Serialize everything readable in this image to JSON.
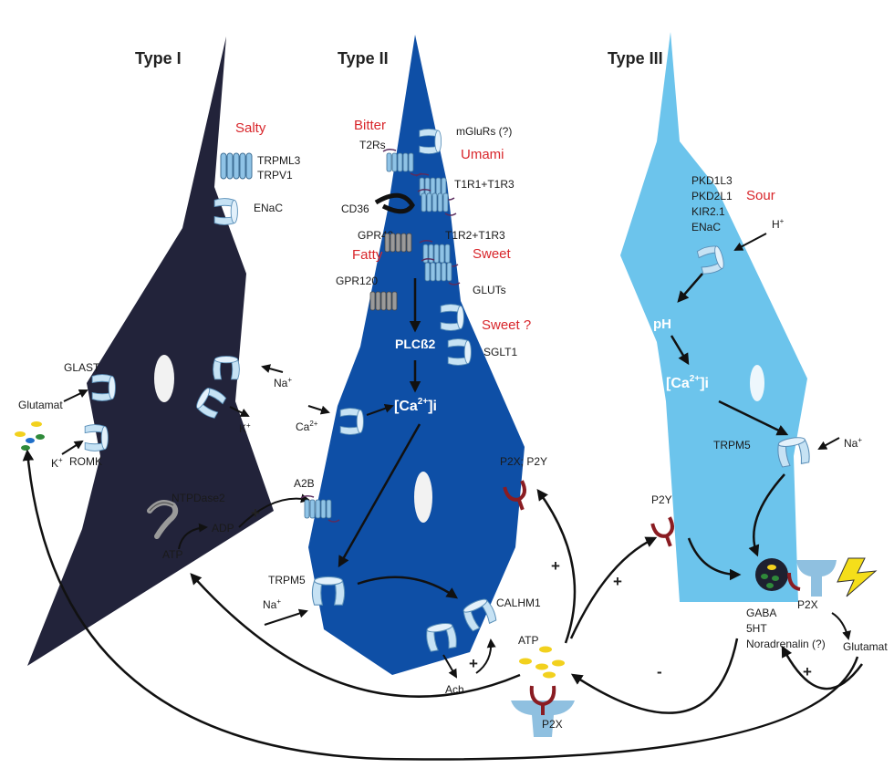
{
  "titles": {
    "type1": "Type I",
    "type2": "Type II",
    "type3": "Type III"
  },
  "colors": {
    "type1_cell": "#22233a",
    "type2_cell": "#0e4fa6",
    "type3_cell": "#6cc4ec",
    "taste_label": "#d8262b",
    "channel": "#b9dbf0",
    "receptor": "#8a1c22",
    "vesicle": "#f2d11e"
  },
  "type1": {
    "taste": "Salty",
    "channels1": "TRPML3",
    "channels2": "TRPV1",
    "enac": "ENaC",
    "glast": "GLAST",
    "glutamat": "Glutamat",
    "romk": "ROMK",
    "k_plus": "K",
    "na_plus": "Na",
    "k_plus_out": "K",
    "ntpdase": "NTPDase2",
    "adp": "ADP",
    "atp": "ATP"
  },
  "type2": {
    "bitter": "Bitter",
    "umami": "Umami",
    "fatty": "Fatty",
    "sweet": "Sweet",
    "sweet_q": "Sweet ?",
    "t2rs": "T2Rs",
    "mglurs": "mGluRs (?)",
    "t1r1": "T1R1+T1R3",
    "cd36": "CD36",
    "gpr40": "GPR40",
    "t1r2": "T1R2+T1R3",
    "gpr120": "GPR120",
    "gluts": "GLUTs",
    "sglt1": "SGLT1",
    "plc": "PLCß2",
    "ca_in": "[Ca",
    "ca_sup": "2+",
    "ca_sub": "]i",
    "ca_out": "Ca",
    "ca_out_sup": "2+",
    "a2b": "A2B",
    "p2x_p2y": "P2X; P2Y",
    "trpm5": "TRPM5",
    "na_plus": "Na",
    "calhm1": "CALHM1",
    "ach": "Ach",
    "atp": "ATP"
  },
  "type3": {
    "sour": "Sour",
    "ch1": "PKD1L3",
    "ch2": "PKD2L1",
    "ch3": "KIR2.1",
    "ch4": "ENaC",
    "h_plus": "H",
    "ph": "pH",
    "ca_in": "[Ca",
    "ca_sup": "2+",
    "ca_sub": "]i",
    "trpm5": "TRPM5",
    "na_plus": "Na",
    "p2y": "P2Y",
    "p2x": "P2X",
    "p2x_bottom": "P2X",
    "gaba": "GABA",
    "ht": "5HT",
    "noradrenalin": "Noradrenalin (?)",
    "glutamat": "Glutamat"
  },
  "signs": {
    "plus": "+",
    "minus": "-",
    "sup_plus": "+"
  }
}
